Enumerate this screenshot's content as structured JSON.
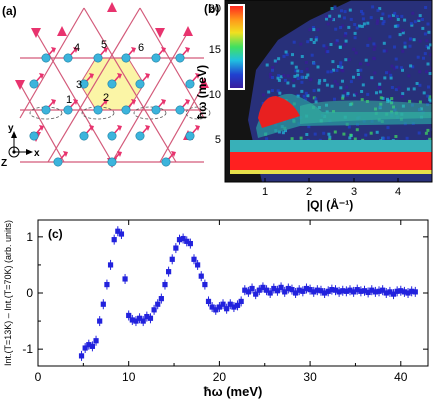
{
  "panel_a": {
    "label": "(a)",
    "site_labels": [
      "1",
      "2",
      "3",
      "4",
      "5",
      "6"
    ],
    "axes": {
      "y": "y",
      "z": "Z",
      "x": "x"
    },
    "colors": {
      "bond": "#d35a7a",
      "site": "#3cb4dc",
      "spin": "#e8336e",
      "hexagon": "#fbf5a6"
    }
  },
  "panel_b": {
    "label": "(b)",
    "ylabel": "ħω (meV)",
    "xlabel": "|Q| (Å⁻¹)",
    "xticks": [
      "1",
      "2",
      "3",
      "4"
    ],
    "yticks": [
      "5",
      "10",
      "15",
      "20"
    ],
    "colorbar_colors": [
      "#ff2020",
      "#ff9a1a",
      "#f0e020",
      "#40e060",
      "#20c0e0",
      "#2040d0",
      "#3a1a9a"
    ]
  },
  "panel_c": {
    "label": "(c)",
    "ylabel": "Int.(T=13K) – Int.(T=70K) (arb. units)",
    "xlabel": "ħω (meV)",
    "marker_color": "#2222dd"
  },
  "chart_data": {
    "type": "scatter",
    "title": "",
    "xlabel": "ħω (meV)",
    "ylabel": "Int.(T=13K) – Int.(T=70K) (arb. units)",
    "xlim": [
      0,
      43
    ],
    "ylim": [
      -1.3,
      1.3
    ],
    "xticks": [
      0,
      10,
      20,
      30,
      40
    ],
    "yticks": [
      -1,
      0,
      1
    ],
    "series": [
      {
        "x": [
          4.8,
          5.2,
          5.6,
          6.0,
          6.4,
          6.8,
          7.2,
          7.6,
          8.0,
          8.4,
          8.8,
          9.2,
          9.6,
          10.0,
          10.4,
          10.8,
          11.2,
          11.6,
          12.0,
          12.4,
          12.8,
          13.2,
          13.6,
          14.0,
          14.4,
          14.8,
          15.2,
          15.6,
          16.0,
          16.4,
          16.8,
          17.2,
          17.6,
          18.0,
          18.4,
          18.8,
          19.2,
          19.6,
          20.0,
          20.4,
          20.8,
          21.2,
          21.6,
          22.0,
          22.4,
          22.8,
          23.2,
          23.6,
          24.0,
          24.4,
          24.8,
          25.2,
          25.6,
          26.0,
          26.4,
          26.8,
          27.2,
          27.6,
          28.0,
          28.4,
          28.8,
          29.2,
          29.6,
          30.0,
          30.4,
          30.8,
          31.2,
          31.6,
          32.0,
          32.4,
          32.8,
          33.2,
          33.6,
          34.0,
          34.4,
          34.8,
          35.2,
          35.6,
          36.0,
          36.4,
          36.8,
          37.2,
          37.6,
          38.0,
          38.4,
          38.8,
          39.2,
          39.6,
          40.0,
          40.4,
          40.8,
          41.2,
          41.6
        ],
        "y": [
          -1.12,
          -0.98,
          -0.92,
          -0.95,
          -0.85,
          -0.5,
          -0.2,
          0.15,
          0.5,
          0.95,
          1.1,
          1.05,
          0.25,
          -0.4,
          -0.48,
          -0.5,
          -0.45,
          -0.5,
          -0.42,
          -0.45,
          -0.3,
          -0.2,
          -0.1,
          0.15,
          0.38,
          0.6,
          0.8,
          0.95,
          0.97,
          0.92,
          0.88,
          0.6,
          0.5,
          0.3,
          0.15,
          -0.15,
          -0.25,
          -0.3,
          -0.25,
          -0.2,
          -0.28,
          -0.2,
          -0.25,
          -0.22,
          -0.15,
          0.05,
          0.02,
          0.08,
          -0.02,
          0.05,
          0.1,
          0.05,
          0.0,
          0.08,
          0.04,
          0.1,
          0.02,
          0.08,
          0.06,
          0.0,
          0.05,
          0.03,
          0.08,
          0.06,
          0.02,
          0.05,
          0.04,
          0.0,
          0.03,
          0.06,
          0.05,
          0.02,
          0.04,
          0.03,
          0.05,
          0.02,
          0.06,
          0.03,
          0.04,
          0.01,
          0.05,
          0.02,
          0.03,
          0.05,
          0.0,
          0.02,
          -0.02,
          0.03,
          0.04,
          0.02,
          0.0,
          0.03,
          0.02
        ]
      }
    ]
  }
}
